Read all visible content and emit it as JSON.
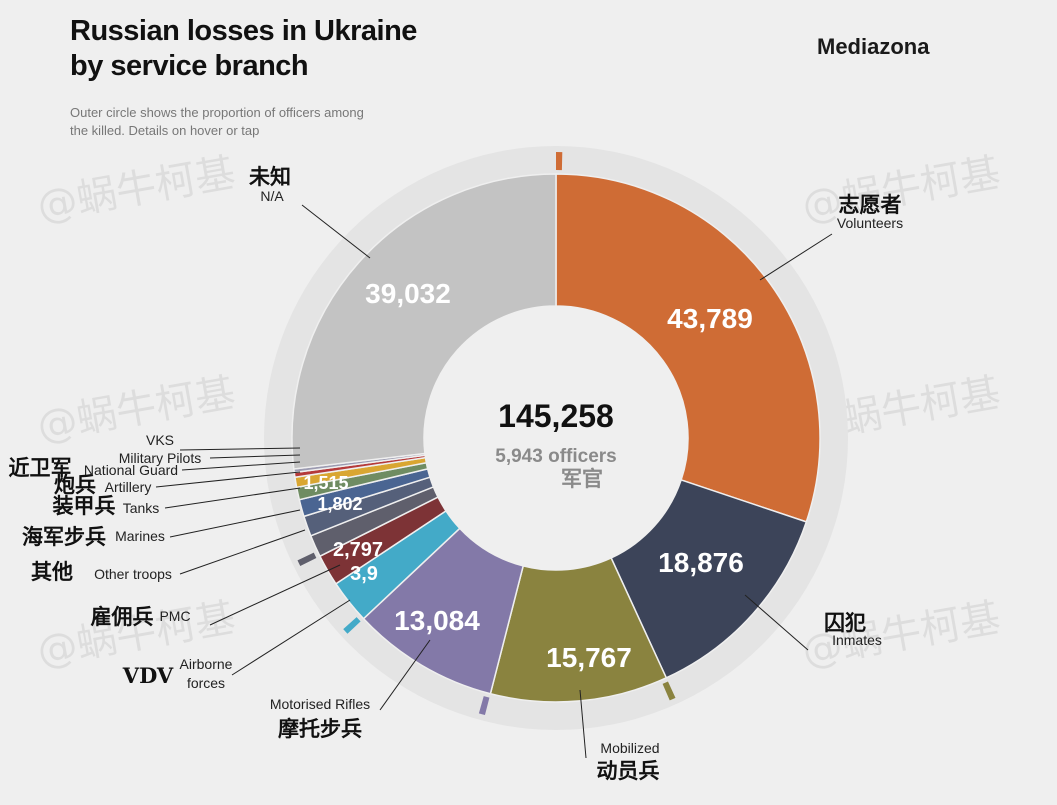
{
  "header": {
    "title_line1": "Russian losses in Ukraine",
    "title_line2": "by service branch",
    "brand": "Mediazona",
    "subtitle": "Outer circle shows the proportion of officers among the killed. Details on hover or tap"
  },
  "center": {
    "total": "145,258",
    "officers": "5,943 officers",
    "officers_cn": "军官"
  },
  "watermark": "@蜗牛柯基",
  "chart_data": {
    "type": "pie",
    "variant": "donut",
    "total": 145258,
    "officers_total": 5943,
    "series": [
      {
        "key": "volunteers",
        "en": "Volunteers",
        "cn": "志愿者",
        "value": 43789,
        "label": "43,789",
        "color": "#cf6c35"
      },
      {
        "key": "inmates",
        "en": "Inmates",
        "cn": "囚犯",
        "value": 18876,
        "label": "18,876",
        "color": "#3c4459"
      },
      {
        "key": "mobilized",
        "en": "Mobilized",
        "cn": "动员兵",
        "value": 15767,
        "label": "15,767",
        "color": "#8a833f"
      },
      {
        "key": "motorised",
        "en": "Motorised Rifles",
        "cn": "摩托步兵",
        "value": 13084,
        "label": "13,084",
        "color": "#8379a8"
      },
      {
        "key": "vdv",
        "en": "Airborne forces",
        "cn": "VDV",
        "value": 3900,
        "label": "3,9",
        "color": "#43aac8"
      },
      {
        "key": "pmc",
        "en": "PMC",
        "cn": "雇佣兵",
        "value": 2797,
        "label": "2,797",
        "color": "#7d3336"
      },
      {
        "key": "other",
        "en": "Other troops",
        "cn": "其他",
        "value": 1960,
        "label": "",
        "color": "#5f5f6c"
      },
      {
        "key": "marines",
        "en": "Marines",
        "cn": "海军步兵",
        "value": 1802,
        "label": "1,802",
        "color": "#55607a"
      },
      {
        "key": "tanks",
        "en": "Tanks",
        "cn": "装甲兵",
        "value": 1515,
        "label": "1,515",
        "color": "#4a6592"
      },
      {
        "key": "artillery",
        "en": "Artillery",
        "cn": "炮兵",
        "value": 1100,
        "label": "",
        "color": "#6f8c62"
      },
      {
        "key": "natguard",
        "en": "National Guard",
        "cn": "近卫军",
        "value": 900,
        "label": "",
        "color": "#d9a632"
      },
      {
        "key": "pilots",
        "en": "Military Pilots",
        "cn": "",
        "value": 420,
        "label": "",
        "color": "#b53a3a"
      },
      {
        "key": "vks",
        "en": "VKS",
        "cn": "",
        "value": 316,
        "label": "",
        "color": "#9b9ab0"
      },
      {
        "key": "na",
        "en": "N/A",
        "cn": "未知",
        "value": 39032,
        "label": "39,032",
        "color": "#c3c3c3"
      }
    ],
    "officer_markers": [
      "volunteers",
      "mobilized",
      "motorised",
      "vdv",
      "other"
    ]
  }
}
